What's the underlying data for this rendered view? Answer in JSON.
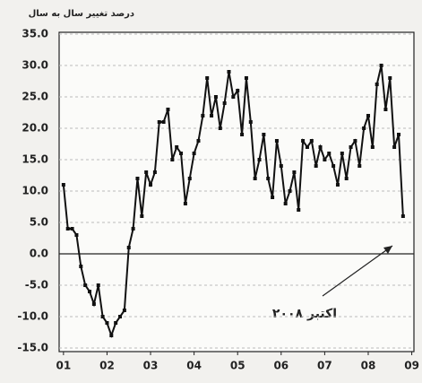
{
  "chart_data": {
    "type": "line",
    "title": "درصد تغییر سال به سال",
    "annotation": "اکتبر ۲۰۰۸",
    "x": [
      1,
      1.1,
      1.2,
      1.3,
      1.4,
      1.5,
      1.6,
      1.7,
      1.8,
      1.9,
      2,
      2.1,
      2.2,
      2.3,
      2.4,
      2.5,
      2.6,
      2.7,
      2.8,
      2.9,
      3,
      3.1,
      3.2,
      3.3,
      3.4,
      3.5,
      3.6,
      3.7,
      3.8,
      3.9,
      4,
      4.1,
      4.2,
      4.3,
      4.4,
      4.5,
      4.6,
      4.7,
      4.8,
      4.9,
      5,
      5.1,
      5.2,
      5.3,
      5.4,
      5.5,
      5.6,
      5.7,
      5.8,
      5.9,
      6,
      6.1,
      6.2,
      6.3,
      6.4,
      6.5,
      6.6,
      6.7,
      6.8,
      6.9,
      7,
      7.1,
      7.2,
      7.3,
      7.4,
      7.5,
      7.6,
      7.7,
      7.8,
      7.9,
      8,
      8.1,
      8.2,
      8.3,
      8.4,
      8.5,
      8.6,
      8.7,
      8.8
    ],
    "series": [
      {
        "color": "#111111",
        "values": [
          11,
          4,
          4,
          3,
          -2,
          -5,
          -6,
          -8,
          -5,
          -10,
          -11,
          -13,
          -11,
          -10,
          -9,
          1,
          4,
          12,
          6,
          13,
          11,
          13,
          21,
          21,
          23,
          15,
          17,
          16,
          8,
          12,
          16,
          18,
          22,
          28,
          22,
          25,
          20,
          24,
          29,
          25,
          26,
          19,
          28,
          21,
          12,
          15,
          19,
          12,
          9,
          18,
          14,
          8,
          10,
          13,
          7,
          18,
          17,
          18,
          14,
          17,
          15,
          16,
          14,
          11,
          16,
          12,
          17,
          18,
          14,
          20,
          22,
          17,
          27,
          30,
          23,
          28,
          17,
          19,
          6
        ]
      }
    ],
    "xlim": [
      0.9,
      9.05
    ],
    "xticks": [
      {
        "value": 1,
        "label": "01"
      },
      {
        "value": 2,
        "label": "02"
      },
      {
        "value": 3,
        "label": "03"
      },
      {
        "value": 4,
        "label": "04"
      },
      {
        "value": 5,
        "label": "05"
      },
      {
        "value": 6,
        "label": "06"
      },
      {
        "value": 7,
        "label": "07"
      },
      {
        "value": 8,
        "label": "08"
      },
      {
        "value": 9,
        "label": "09"
      }
    ],
    "ylim": [
      -15,
      35
    ],
    "yticks": [
      {
        "value": -15,
        "label": "-15.0"
      },
      {
        "value": -10,
        "label": "-10.0"
      },
      {
        "value": -5,
        "label": "-5.0"
      },
      {
        "value": 0,
        "label": "0.0"
      },
      {
        "value": 5,
        "label": "5.0"
      },
      {
        "value": 10,
        "label": "10.0"
      },
      {
        "value": 15,
        "label": "15.0"
      },
      {
        "value": 20,
        "label": "20.0"
      },
      {
        "value": 25,
        "label": "25.0"
      },
      {
        "value": 30,
        "label": "30.0"
      },
      {
        "value": 35,
        "label": "35.0"
      }
    ],
    "grid": true
  }
}
